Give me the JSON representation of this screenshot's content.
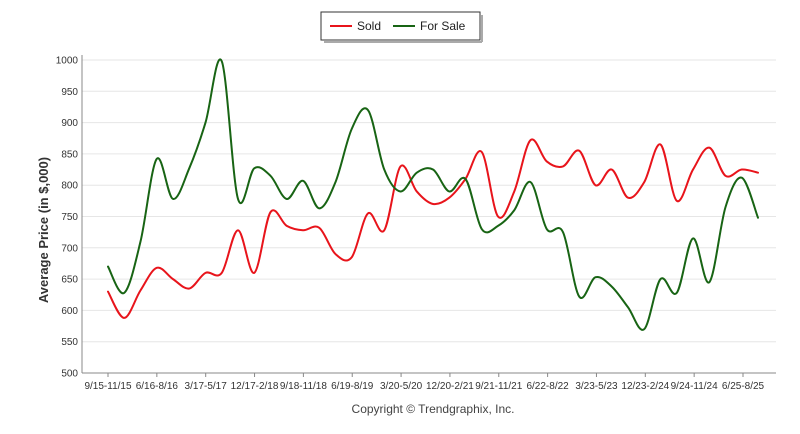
{
  "chart_data": {
    "type": "line",
    "ylabel": "Average Price (in $,000)",
    "ylim": [
      500,
      1000
    ],
    "yticks": [
      500,
      550,
      600,
      650,
      700,
      750,
      800,
      850,
      900,
      950,
      1000
    ],
    "categories": [
      "9/15-11/15",
      "6/16-8/16",
      "3/17-5/17",
      "12/17-2/18",
      "9/18-11/18",
      "6/19-8/19",
      "3/20-5/20",
      "12/20-2/21",
      "9/21-11/21",
      "6/22-8/22",
      "3/23-5/23",
      "12/23-2/24",
      "9/24-11/24",
      "6/25-8/25"
    ],
    "x": [
      0,
      1,
      2,
      3,
      4,
      5,
      6,
      7,
      8,
      9,
      10,
      11,
      12,
      13,
      14,
      15,
      16,
      17,
      18,
      19,
      20,
      21,
      22,
      23,
      24,
      25,
      26,
      27,
      28,
      29,
      30,
      31,
      32,
      33,
      34,
      35,
      36,
      37,
      38,
      39,
      40
    ],
    "grid": true,
    "legend_position": "top-center",
    "series": [
      {
        "name": "Sold",
        "color": "#e8141b",
        "values": [
          630,
          588,
          632,
          668,
          650,
          635,
          660,
          660,
          728,
          660,
          757,
          735,
          728,
          732,
          690,
          685,
          755,
          728,
          830,
          790,
          770,
          780,
          810,
          853,
          750,
          790,
          872,
          838,
          830,
          855,
          800,
          825,
          780,
          805,
          865,
          775,
          825,
          860,
          815,
          825,
          820
        ]
      },
      {
        "name": "For Sale",
        "color": "#186414",
        "values": [
          670,
          628,
          710,
          842,
          778,
          827,
          900,
          998,
          778,
          827,
          815,
          778,
          807,
          763,
          805,
          890,
          920,
          825,
          790,
          820,
          825,
          790,
          810,
          730,
          735,
          760,
          805,
          730,
          725,
          622,
          653,
          638,
          605,
          570,
          650,
          628,
          715,
          645,
          765,
          812,
          748
        ]
      }
    ]
  },
  "credit": "Copyright © Trendgraphix, Inc."
}
